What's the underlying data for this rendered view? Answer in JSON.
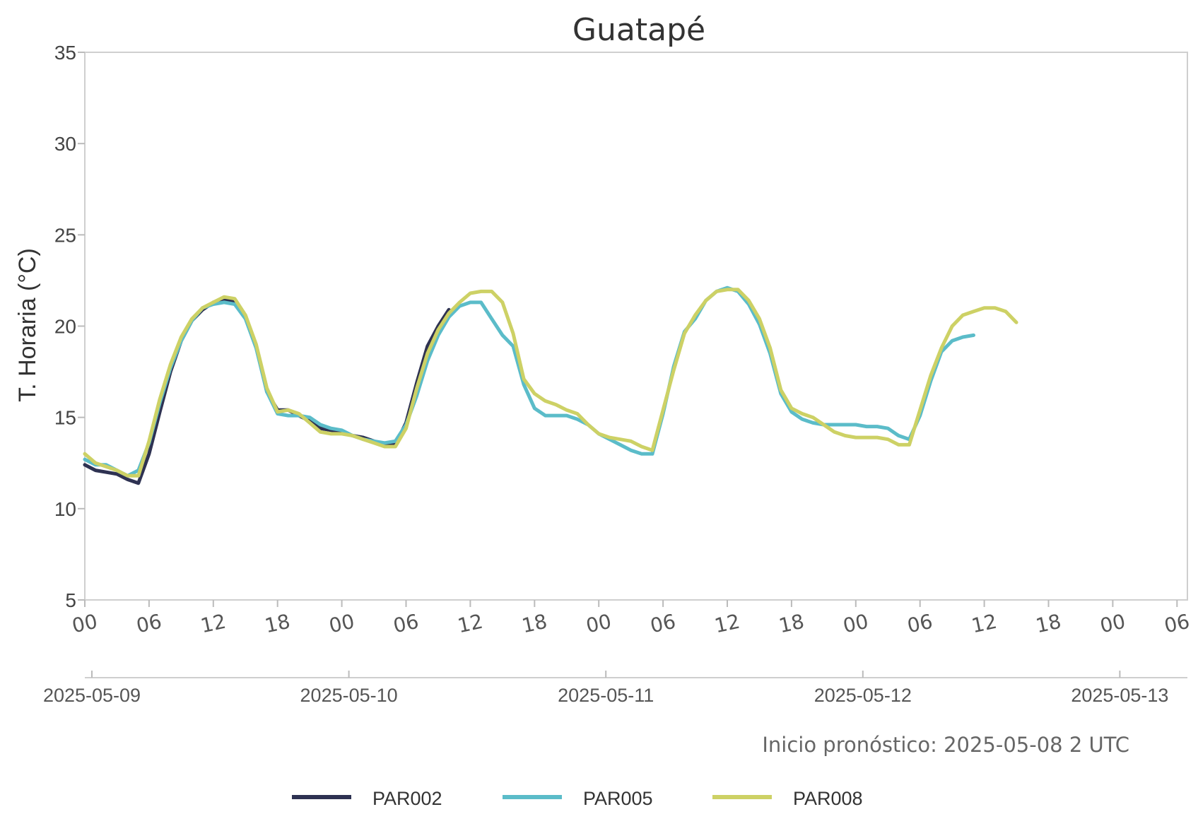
{
  "chart_data": {
    "type": "line",
    "title": "Guatapé",
    "ylabel": "T. Horaria (°C)",
    "xlabel": "",
    "ylim": [
      5,
      35
    ],
    "yticks": [
      "5",
      "10",
      "15",
      "20",
      "25",
      "30",
      "35"
    ],
    "xlim_hours": [
      0,
      102
    ],
    "hour_ticks": [
      "00",
      "06",
      "12",
      "18",
      "00",
      "06",
      "12",
      "18",
      "00",
      "06",
      "12",
      "18",
      "00",
      "06",
      "12",
      "18",
      "00",
      "06"
    ],
    "date_ticks": [
      "2025-05-09",
      "2025-05-10",
      "2025-05-11",
      "2025-05-12",
      "2025-05-13"
    ],
    "grid": false,
    "legend_position": "bottom",
    "annotation": "Inicio pronóstico: 2025-05-08 2 UTC",
    "series": [
      {
        "name": "PAR002",
        "color": "#2e3252",
        "x": [
          0,
          1,
          2,
          3,
          4,
          5,
          6,
          7,
          8,
          9,
          10,
          11,
          12,
          13,
          14,
          15,
          16,
          17,
          18,
          19,
          20,
          21,
          22,
          23,
          24,
          25,
          26,
          27,
          28,
          29,
          30,
          31,
          32,
          33,
          34,
          35
        ],
        "y": [
          12.4,
          12.1,
          12.0,
          11.9,
          11.6,
          11.4,
          13.0,
          15.3,
          17.5,
          19.2,
          20.3,
          20.9,
          21.3,
          21.5,
          21.3,
          20.5,
          18.9,
          16.4,
          15.4,
          15.4,
          15.1,
          14.8,
          14.4,
          14.3,
          14.2,
          14.0,
          13.9,
          13.7,
          13.5,
          13.5,
          14.7,
          16.9,
          18.9,
          20.0,
          20.9,
          null
        ]
      },
      {
        "name": "PAR005",
        "color": "#5bbcc9",
        "x": [
          0,
          1,
          2,
          3,
          4,
          5,
          6,
          7,
          8,
          9,
          10,
          11,
          12,
          13,
          14,
          15,
          16,
          17,
          18,
          19,
          20,
          21,
          22,
          23,
          24,
          25,
          26,
          27,
          28,
          29,
          30,
          31,
          32,
          33,
          34,
          35,
          36,
          37,
          38,
          39,
          40,
          41,
          42,
          43,
          44,
          45,
          46,
          47,
          48,
          49,
          50,
          51,
          52,
          53,
          54,
          55,
          56,
          57,
          58,
          59,
          60,
          61,
          62,
          63,
          64,
          65,
          66,
          67,
          68,
          69,
          70,
          71,
          72,
          73,
          74,
          75,
          76,
          77,
          78,
          79,
          80,
          81,
          82,
          83,
          84,
          85,
          86,
          87,
          88,
          89,
          90
        ],
        "y": [
          12.7,
          12.4,
          12.4,
          12.1,
          11.8,
          12.1,
          13.6,
          15.8,
          17.7,
          19.2,
          20.3,
          21.0,
          21.2,
          21.3,
          21.2,
          20.4,
          18.8,
          16.4,
          15.2,
          15.1,
          15.1,
          15.0,
          14.6,
          14.4,
          14.3,
          14.0,
          13.8,
          13.7,
          13.6,
          13.7,
          14.6,
          16.2,
          18.1,
          19.5,
          20.5,
          21.1,
          21.3,
          21.3,
          20.4,
          19.5,
          18.9,
          16.8,
          15.5,
          15.1,
          15.1,
          15.1,
          14.9,
          14.6,
          14.1,
          13.8,
          13.5,
          13.2,
          13.0,
          13.0,
          15.2,
          17.8,
          19.7,
          20.4,
          21.4,
          21.9,
          22.1,
          21.9,
          21.2,
          20.1,
          18.5,
          16.3,
          15.3,
          14.9,
          14.7,
          14.6,
          14.6,
          14.6,
          14.6,
          14.5,
          14.5,
          14.4,
          14.0,
          13.8,
          15.1,
          17.0,
          18.6,
          19.2,
          19.4,
          19.5,
          null,
          null,
          null,
          null,
          null,
          null,
          null
        ],
        "note": "series ends near hour 84"
      },
      {
        "name": "PAR008",
        "color": "#cdd165",
        "x": [
          0,
          1,
          2,
          3,
          4,
          5,
          6,
          7,
          8,
          9,
          10,
          11,
          12,
          13,
          14,
          15,
          16,
          17,
          18,
          19,
          20,
          21,
          22,
          23,
          24,
          25,
          26,
          27,
          28,
          29,
          30,
          31,
          32,
          33,
          34,
          35,
          36,
          37,
          38,
          39,
          40,
          41,
          42,
          43,
          44,
          45,
          46,
          47,
          48,
          49,
          50,
          51,
          52,
          53,
          54,
          55,
          56,
          57,
          58,
          59,
          60,
          61,
          62,
          63,
          64,
          65,
          66,
          67,
          68,
          69,
          70,
          71,
          72,
          73,
          74,
          75,
          76,
          77,
          78,
          79,
          80,
          81,
          82,
          83,
          84,
          85,
          86,
          87
        ],
        "y": [
          13.0,
          12.5,
          12.3,
          12.1,
          11.8,
          11.8,
          13.7,
          16.0,
          17.9,
          19.4,
          20.4,
          21.0,
          21.3,
          21.6,
          21.5,
          20.6,
          19.0,
          16.6,
          15.3,
          15.4,
          15.2,
          14.7,
          14.2,
          14.1,
          14.1,
          14.0,
          13.8,
          13.6,
          13.4,
          13.4,
          14.4,
          16.6,
          18.5,
          19.8,
          20.7,
          21.3,
          21.8,
          21.9,
          21.9,
          21.3,
          19.6,
          17.1,
          16.3,
          15.9,
          15.7,
          15.4,
          15.2,
          14.6,
          14.1,
          13.9,
          13.8,
          13.7,
          13.4,
          13.2,
          15.4,
          17.6,
          19.6,
          20.6,
          21.4,
          21.9,
          22.0,
          22.0,
          21.4,
          20.4,
          18.8,
          16.5,
          15.5,
          15.2,
          15.0,
          14.6,
          14.2,
          14.0,
          13.9,
          13.9,
          13.9,
          13.8,
          13.5,
          13.5,
          15.4,
          17.3,
          18.8,
          20.0,
          20.6,
          20.8,
          21.0,
          21.0,
          20.8,
          20.2
        ]
      }
    ]
  }
}
